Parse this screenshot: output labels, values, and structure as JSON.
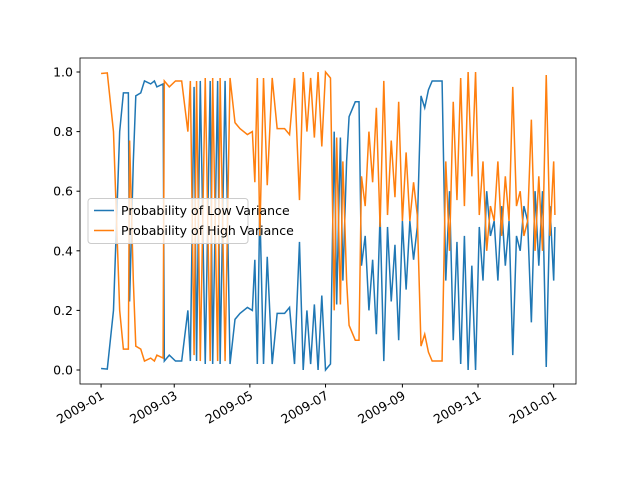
{
  "chart_data": {
    "type": "line",
    "x": [
      0,
      5,
      10,
      15,
      18,
      22,
      23,
      26,
      28,
      32,
      35,
      40,
      43,
      45,
      50,
      51,
      55,
      60,
      65,
      70,
      72,
      75,
      77,
      80,
      84,
      88,
      90,
      94,
      96,
      100,
      104,
      108,
      112,
      118,
      122,
      124,
      126,
      128,
      131,
      134,
      138,
      142,
      148,
      152,
      156,
      160,
      163,
      166,
      169,
      172,
      175,
      178,
      181,
      185,
      188,
      190,
      193,
      195,
      198,
      200,
      205,
      208,
      210,
      213,
      216,
      219,
      222,
      225,
      228,
      231,
      234,
      237,
      240,
      243,
      246,
      249,
      252,
      255,
      258,
      261,
      264,
      267,
      270,
      275,
      278,
      281,
      284,
      287,
      290,
      293,
      296,
      299,
      302,
      305,
      308,
      311,
      314,
      317,
      320,
      323,
      326,
      329,
      332,
      335,
      338,
      341,
      344,
      347,
      350,
      353,
      356,
      359,
      362,
      365,
      366
    ],
    "series": [
      {
        "name": "Probability of Low Variance",
        "color": "#1f77b4",
        "values": [
          0.005,
          0.003,
          0.2,
          0.8,
          0.93,
          0.93,
          0.23,
          0.7,
          0.92,
          0.93,
          0.97,
          0.96,
          0.97,
          0.95,
          0.96,
          0.03,
          0.05,
          0.03,
          0.03,
          0.2,
          0.03,
          0.95,
          0.03,
          0.97,
          0.02,
          0.97,
          0.02,
          0.97,
          0.02,
          0.97,
          0.02,
          0.17,
          0.19,
          0.21,
          0.2,
          0.37,
          0.02,
          0.55,
          0.02,
          0.38,
          0.02,
          0.19,
          0.19,
          0.21,
          0.02,
          0.43,
          0,
          0.2,
          0.02,
          0.22,
          0,
          0.25,
          0,
          0.02,
          0.8,
          0.22,
          0.78,
          0.3,
          0.7,
          0.85,
          0.9,
          0.9,
          0.35,
          0.45,
          0.2,
          0.37,
          0.12,
          0.52,
          0.03,
          0.48,
          0.23,
          0.42,
          0.1,
          0.5,
          0.27,
          0.5,
          0.37,
          0.48,
          0.92,
          0.88,
          0.94,
          0.97,
          0.97,
          0.97,
          0.3,
          0.6,
          0.1,
          0.43,
          0.02,
          0.45,
          0,
          0.35,
          0,
          0.48,
          0.3,
          0.6,
          0.45,
          0.5,
          0.3,
          0.55,
          0.35,
          0.5,
          0.05,
          0.45,
          0.4,
          0.55,
          0.5,
          0.16,
          0.6,
          0.35,
          0.6,
          0.01,
          0.55,
          0.3,
          0.48
        ]
      },
      {
        "name": "Probability of High Variance",
        "color": "#ff7f0e",
        "values": [
          0.995,
          0.997,
          0.8,
          0.2,
          0.07,
          0.07,
          0.77,
          0.3,
          0.08,
          0.07,
          0.03,
          0.04,
          0.03,
          0.05,
          0.04,
          0.97,
          0.95,
          0.97,
          0.97,
          0.8,
          0.97,
          0.05,
          0.97,
          0.03,
          0.98,
          0.03,
          0.98,
          0.03,
          0.98,
          0.03,
          0.98,
          0.83,
          0.81,
          0.79,
          0.8,
          0.63,
          0.98,
          0.45,
          0.98,
          0.62,
          0.98,
          0.81,
          0.81,
          0.79,
          0.98,
          0.57,
          1,
          0.8,
          0.98,
          0.78,
          1,
          0.75,
          1,
          0.98,
          0.2,
          0.78,
          0.22,
          0.7,
          0.3,
          0.15,
          0.1,
          0.1,
          0.65,
          0.55,
          0.8,
          0.63,
          0.88,
          0.48,
          0.97,
          0.52,
          0.77,
          0.58,
          0.9,
          0.5,
          0.73,
          0.5,
          0.63,
          0.52,
          0.08,
          0.12,
          0.06,
          0.03,
          0.03,
          0.03,
          0.7,
          0.4,
          0.9,
          0.57,
          0.98,
          0.55,
          1,
          0.65,
          1,
          0.52,
          0.7,
          0.4,
          0.55,
          0.5,
          0.7,
          0.45,
          0.65,
          0.5,
          0.95,
          0.55,
          0.6,
          0.45,
          0.5,
          0.84,
          0.4,
          0.65,
          0.4,
          0.99,
          0.45,
          0.7,
          0.52
        ]
      }
    ],
    "xlim": [
      -17,
      383
    ],
    "xticks": [
      {
        "value": 0,
        "label": "2009-01"
      },
      {
        "value": 59,
        "label": "2009-03"
      },
      {
        "value": 120,
        "label": "2009-05"
      },
      {
        "value": 181,
        "label": "2009-07"
      },
      {
        "value": 243,
        "label": "2009-09"
      },
      {
        "value": 304,
        "label": "2009-11"
      },
      {
        "value": 365,
        "label": "2010-01"
      }
    ],
    "ylim": [
      -0.047,
      1.047
    ],
    "yticks": [
      {
        "value": 0,
        "label": "0.0"
      },
      0.2,
      0.4,
      0.6,
      0.8,
      {
        "value": 1,
        "label": "1.0"
      }
    ],
    "legend": "center left"
  }
}
